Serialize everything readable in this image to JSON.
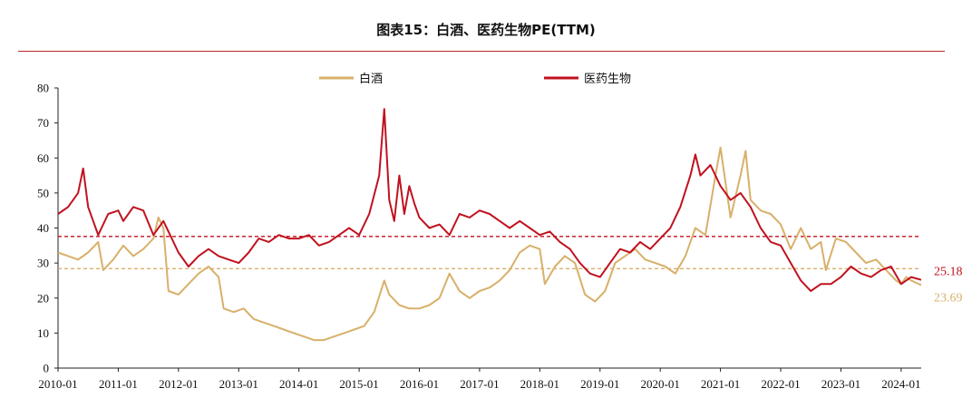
{
  "header": {
    "title": "图表15：白酒、医药生物PE(TTM)"
  },
  "chart_data": {
    "type": "line",
    "title": "图表15：白酒、医药生物PE(TTM)",
    "xlabel": "",
    "ylabel": "",
    "ylim": [
      0,
      80
    ],
    "yticks": [
      0,
      10,
      20,
      30,
      40,
      50,
      60,
      70,
      80
    ],
    "xlim": [
      "2010-01",
      "2024-05"
    ],
    "xticks": [
      "2010-01",
      "2011-01",
      "2012-01",
      "2013-01",
      "2014-01",
      "2015-01",
      "2016-01",
      "2017-01",
      "2018-01",
      "2019-01",
      "2020-01",
      "2021-01",
      "2022-01",
      "2023-01",
      "2024-01"
    ],
    "legend_position": "top-center",
    "grid": false,
    "series": [
      {
        "name": "白酒",
        "color": "#d8b06a",
        "end_label": "23.69",
        "points": [
          [
            "2010-01",
            33
          ],
          [
            "2010-03",
            32
          ],
          [
            "2010-05",
            31
          ],
          [
            "2010-07",
            33
          ],
          [
            "2010-09",
            36
          ],
          [
            "2010-10",
            28
          ],
          [
            "2010-12",
            31
          ],
          [
            "2011-02",
            35
          ],
          [
            "2011-04",
            32
          ],
          [
            "2011-06",
            34
          ],
          [
            "2011-08",
            37
          ],
          [
            "2011-09",
            43
          ],
          [
            "2011-10",
            40
          ],
          [
            "2011-11",
            22
          ],
          [
            "2012-01",
            21
          ],
          [
            "2012-03",
            24
          ],
          [
            "2012-05",
            27
          ],
          [
            "2012-07",
            29
          ],
          [
            "2012-09",
            26
          ],
          [
            "2012-10",
            17
          ],
          [
            "2012-12",
            16
          ],
          [
            "2013-02",
            17
          ],
          [
            "2013-04",
            14
          ],
          [
            "2013-06",
            13
          ],
          [
            "2013-08",
            12
          ],
          [
            "2013-10",
            11
          ],
          [
            "2013-12",
            10
          ],
          [
            "2014-02",
            9
          ],
          [
            "2014-04",
            8
          ],
          [
            "2014-06",
            8
          ],
          [
            "2014-08",
            9
          ],
          [
            "2014-10",
            10
          ],
          [
            "2014-12",
            11
          ],
          [
            "2015-02",
            12
          ],
          [
            "2015-04",
            16
          ],
          [
            "2015-06",
            25
          ],
          [
            "2015-07",
            21
          ],
          [
            "2015-09",
            18
          ],
          [
            "2015-11",
            17
          ],
          [
            "2016-01",
            17
          ],
          [
            "2016-03",
            18
          ],
          [
            "2016-05",
            20
          ],
          [
            "2016-07",
            27
          ],
          [
            "2016-09",
            22
          ],
          [
            "2016-11",
            20
          ],
          [
            "2017-01",
            22
          ],
          [
            "2017-03",
            23
          ],
          [
            "2017-05",
            25
          ],
          [
            "2017-07",
            28
          ],
          [
            "2017-09",
            33
          ],
          [
            "2017-11",
            35
          ],
          [
            "2018-01",
            34
          ],
          [
            "2018-02",
            24
          ],
          [
            "2018-04",
            29
          ],
          [
            "2018-06",
            32
          ],
          [
            "2018-08",
            30
          ],
          [
            "2018-10",
            21
          ],
          [
            "2018-12",
            19
          ],
          [
            "2019-02",
            22
          ],
          [
            "2019-04",
            30
          ],
          [
            "2019-06",
            32
          ],
          [
            "2019-08",
            34
          ],
          [
            "2019-10",
            31
          ],
          [
            "2019-12",
            30
          ],
          [
            "2020-02",
            29
          ],
          [
            "2020-04",
            27
          ],
          [
            "2020-06",
            32
          ],
          [
            "2020-08",
            40
          ],
          [
            "2020-10",
            38
          ],
          [
            "2020-12",
            55
          ],
          [
            "2021-01",
            63
          ],
          [
            "2021-03",
            43
          ],
          [
            "2021-05",
            55
          ],
          [
            "2021-06",
            62
          ],
          [
            "2021-07",
            48
          ],
          [
            "2021-09",
            45
          ],
          [
            "2021-11",
            44
          ],
          [
            "2022-01",
            41
          ],
          [
            "2022-03",
            34
          ],
          [
            "2022-05",
            40
          ],
          [
            "2022-07",
            34
          ],
          [
            "2022-09",
            36
          ],
          [
            "2022-10",
            28
          ],
          [
            "2022-12",
            37
          ],
          [
            "2023-02",
            36
          ],
          [
            "2023-04",
            33
          ],
          [
            "2023-06",
            30
          ],
          [
            "2023-08",
            31
          ],
          [
            "2023-10",
            28
          ],
          [
            "2023-12",
            25
          ],
          [
            "2024-01",
            24
          ],
          [
            "2024-02",
            26
          ],
          [
            "2024-03",
            25
          ],
          [
            "2024-05",
            23.69
          ]
        ]
      },
      {
        "name": "医药生物",
        "color": "#c0121f",
        "end_label": "25.18",
        "points": [
          [
            "2010-01",
            44
          ],
          [
            "2010-03",
            46
          ],
          [
            "2010-05",
            50
          ],
          [
            "2010-06",
            57
          ],
          [
            "2010-07",
            46
          ],
          [
            "2010-09",
            38
          ],
          [
            "2010-11",
            44
          ],
          [
            "2011-01",
            45
          ],
          [
            "2011-02",
            42
          ],
          [
            "2011-04",
            46
          ],
          [
            "2011-06",
            45
          ],
          [
            "2011-08",
            38
          ],
          [
            "2011-10",
            42
          ],
          [
            "2011-12",
            36
          ],
          [
            "2012-01",
            33
          ],
          [
            "2012-03",
            29
          ],
          [
            "2012-05",
            32
          ],
          [
            "2012-07",
            34
          ],
          [
            "2012-09",
            32
          ],
          [
            "2012-11",
            31
          ],
          [
            "2013-01",
            30
          ],
          [
            "2013-03",
            33
          ],
          [
            "2013-05",
            37
          ],
          [
            "2013-07",
            36
          ],
          [
            "2013-09",
            38
          ],
          [
            "2013-11",
            37
          ],
          [
            "2014-01",
            37
          ],
          [
            "2014-03",
            38
          ],
          [
            "2014-05",
            35
          ],
          [
            "2014-07",
            36
          ],
          [
            "2014-09",
            38
          ],
          [
            "2014-11",
            40
          ],
          [
            "2015-01",
            38
          ],
          [
            "2015-03",
            44
          ],
          [
            "2015-05",
            55
          ],
          [
            "2015-06",
            74
          ],
          [
            "2015-07",
            48
          ],
          [
            "2015-08",
            42
          ],
          [
            "2015-09",
            55
          ],
          [
            "2015-10",
            44
          ],
          [
            "2015-11",
            52
          ],
          [
            "2015-12",
            47
          ],
          [
            "2016-01",
            43
          ],
          [
            "2016-03",
            40
          ],
          [
            "2016-05",
            41
          ],
          [
            "2016-07",
            38
          ],
          [
            "2016-09",
            44
          ],
          [
            "2016-11",
            43
          ],
          [
            "2017-01",
            45
          ],
          [
            "2017-03",
            44
          ],
          [
            "2017-05",
            42
          ],
          [
            "2017-07",
            40
          ],
          [
            "2017-09",
            42
          ],
          [
            "2017-11",
            40
          ],
          [
            "2018-01",
            38
          ],
          [
            "2018-03",
            39
          ],
          [
            "2018-05",
            36
          ],
          [
            "2018-07",
            34
          ],
          [
            "2018-09",
            30
          ],
          [
            "2018-11",
            27
          ],
          [
            "2019-01",
            26
          ],
          [
            "2019-03",
            30
          ],
          [
            "2019-05",
            34
          ],
          [
            "2019-07",
            33
          ],
          [
            "2019-09",
            36
          ],
          [
            "2019-11",
            34
          ],
          [
            "2020-01",
            37
          ],
          [
            "2020-03",
            40
          ],
          [
            "2020-05",
            46
          ],
          [
            "2020-07",
            55
          ],
          [
            "2020-08",
            61
          ],
          [
            "2020-09",
            55
          ],
          [
            "2020-11",
            58
          ],
          [
            "2021-01",
            52
          ],
          [
            "2021-03",
            48
          ],
          [
            "2021-05",
            50
          ],
          [
            "2021-07",
            46
          ],
          [
            "2021-09",
            40
          ],
          [
            "2021-11",
            36
          ],
          [
            "2022-01",
            35
          ],
          [
            "2022-03",
            30
          ],
          [
            "2022-05",
            25
          ],
          [
            "2022-07",
            22
          ],
          [
            "2022-09",
            24
          ],
          [
            "2022-11",
            24
          ],
          [
            "2023-01",
            26
          ],
          [
            "2023-03",
            29
          ],
          [
            "2023-05",
            27
          ],
          [
            "2023-07",
            26
          ],
          [
            "2023-09",
            28
          ],
          [
            "2023-11",
            29
          ],
          [
            "2024-01",
            24
          ],
          [
            "2024-02",
            25
          ],
          [
            "2024-03",
            26
          ],
          [
            "2024-05",
            25.18
          ]
        ]
      }
    ],
    "reference_lines": [
      {
        "series": "医药生物",
        "value": 37.6,
        "color": "#c0121f",
        "style": "dashed"
      },
      {
        "series": "白酒",
        "value": 28.4,
        "color": "#d8b06a",
        "style": "dashed"
      }
    ]
  }
}
